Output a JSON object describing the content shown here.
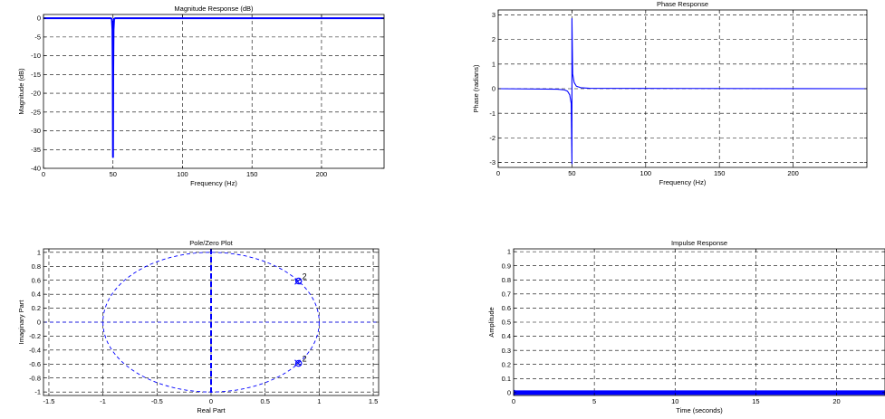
{
  "chart_data": [
    {
      "id": "magnitude",
      "type": "line",
      "title": "Magnitude Response (dB)",
      "xlabel": "Frequency (Hz)",
      "ylabel": "Magnitude (dB)",
      "xlim": [
        0,
        245
      ],
      "ylim": [
        -40,
        1
      ],
      "xticks": [
        0,
        50,
        100,
        150,
        200
      ],
      "yticks": [
        0,
        -5,
        -10,
        -15,
        -20,
        -25,
        -30,
        -35,
        -40
      ],
      "grid": true,
      "series": [
        {
          "color": "#0000ff",
          "points": [
            [
              0,
              0
            ],
            [
              48.5,
              0
            ],
            [
              49.2,
              -0.2
            ],
            [
              49.6,
              -3
            ],
            [
              49.85,
              -15
            ],
            [
              50,
              -37
            ],
            [
              50.15,
              -15
            ],
            [
              50.4,
              -3
            ],
            [
              50.8,
              -0.2
            ],
            [
              51.5,
              0
            ],
            [
              245,
              0
            ]
          ]
        }
      ]
    },
    {
      "id": "phase",
      "type": "line",
      "title": "Phase Response",
      "xlabel": "Frequency (Hz)",
      "ylabel": "Phase (radians)",
      "xlim": [
        0,
        250
      ],
      "ylim": [
        -3.2,
        3.2
      ],
      "xticks": [
        0,
        50,
        100,
        150,
        200
      ],
      "yticks": [
        3,
        2,
        1,
        0,
        -1,
        -2,
        -3
      ],
      "grid": true,
      "series": [
        {
          "color": "#0000ff",
          "points": [
            [
              0,
              0
            ],
            [
              40,
              -0.02
            ],
            [
              45,
              -0.05
            ],
            [
              47,
              -0.1
            ],
            [
              48.5,
              -0.25
            ],
            [
              49.5,
              -0.6
            ],
            [
              50,
              -3.05
            ],
            [
              50,
              2.85
            ],
            [
              50.5,
              0.6
            ],
            [
              51.5,
              0.25
            ],
            [
              53,
              0.1
            ],
            [
              56,
              0.04
            ],
            [
              62,
              0.015
            ],
            [
              250,
              0
            ]
          ]
        }
      ]
    },
    {
      "id": "polezero",
      "type": "scatter",
      "title": "Pole/Zero Plot",
      "xlabel": "Real Part",
      "ylabel": "Imaginary Part",
      "xlim": [
        -1.55,
        1.55
      ],
      "ylim": [
        -1.05,
        1.05
      ],
      "xticks": [
        -1.5,
        -1,
        -0.5,
        0,
        0.5,
        1,
        1.5
      ],
      "yticks": [
        1,
        0.8,
        0.6,
        0.4,
        0.2,
        0,
        -0.2,
        -0.4,
        -0.6,
        -0.8,
        -1
      ],
      "grid": true,
      "unit_circle": true,
      "zeros": [
        [
          0.81,
          0.59
        ],
        [
          0.81,
          -0.59
        ]
      ],
      "poles": [
        [
          0.8,
          0.58
        ],
        [
          0.8,
          -0.58
        ]
      ],
      "multiplicity_labels": [
        "2",
        "2"
      ]
    },
    {
      "id": "impulse",
      "type": "line",
      "title": "Impulse Response",
      "xlabel": "Time (seconds)",
      "ylabel": "Amplitude",
      "xlim": [
        0,
        23
      ],
      "ylim": [
        -0.02,
        1.02
      ],
      "xticks": [
        0,
        5,
        10,
        15,
        20
      ],
      "yticks": [
        1,
        0.9,
        0.8,
        0.7,
        0.6,
        0.5,
        0.4,
        0.3,
        0.2,
        0.1,
        0
      ],
      "grid": true,
      "series": [
        {
          "color": "#0000ff",
          "points": [
            [
              0,
              0
            ],
            [
              23,
              0
            ]
          ]
        }
      ]
    }
  ]
}
